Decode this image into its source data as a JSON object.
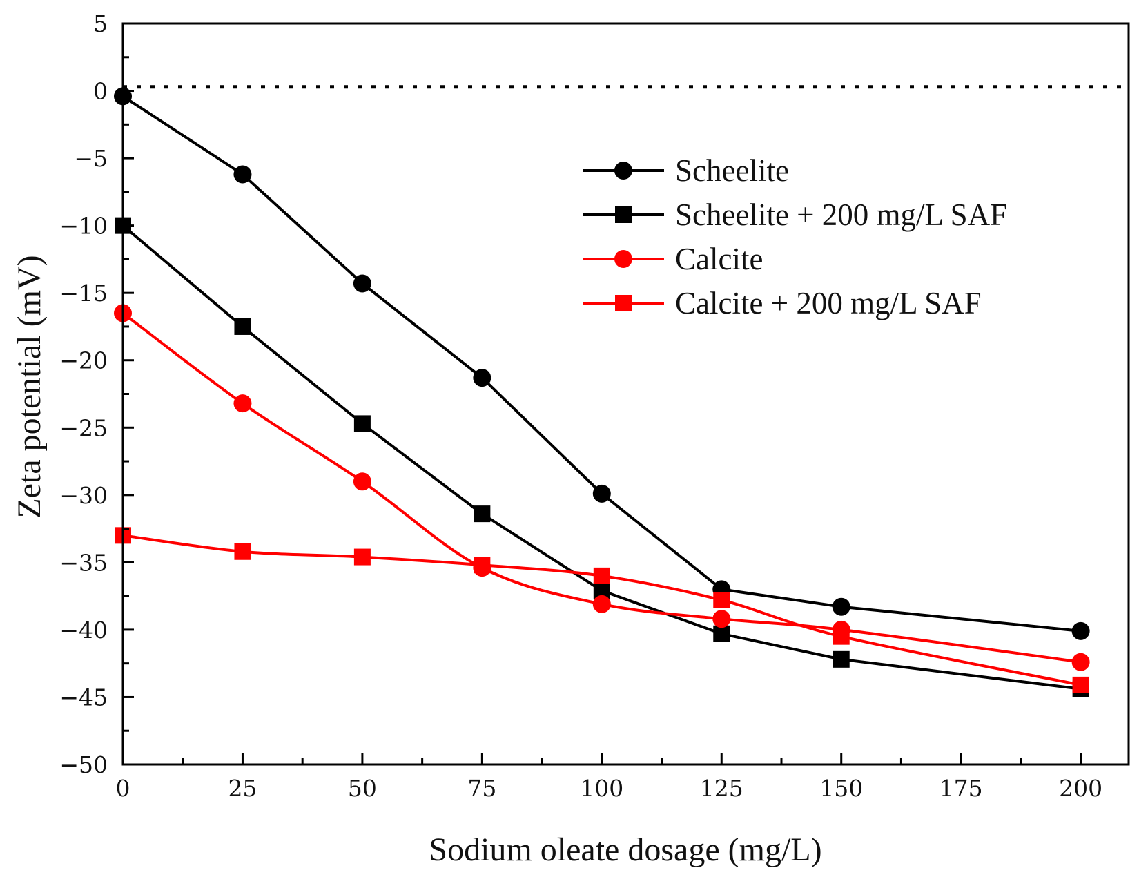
{
  "chart_data": {
    "type": "line",
    "title": "",
    "xlabel": "Sodium oleate dosage (mg/L)",
    "ylabel": "Zeta potential (mV)",
    "xlim": [
      0,
      210
    ],
    "ylim": [
      -50,
      5
    ],
    "xticks": [
      0,
      25,
      50,
      75,
      100,
      125,
      150,
      175,
      200
    ],
    "xtick_labels": [
      "0",
      "25",
      "50",
      "75",
      "100",
      "125",
      "150",
      "175",
      "200"
    ],
    "yticks": [
      5,
      0,
      -5,
      -10,
      -15,
      -20,
      -25,
      -30,
      -35,
      -40,
      -45,
      -50
    ],
    "ytick_labels": [
      "5",
      "0",
      "−5",
      "−10",
      "−15",
      "−20",
      "−25",
      "−30",
      "−35",
      "−40",
      "−45",
      "−50"
    ],
    "reference_line": {
      "y": 0.3,
      "style": "dotted"
    },
    "legend_position": "upper-right",
    "x": [
      0,
      25,
      50,
      75,
      100,
      125,
      150,
      200
    ],
    "series": [
      {
        "name": "Scheelite",
        "color": "#000000",
        "marker": "circle",
        "smooth": false,
        "values": [
          -0.4,
          -6.2,
          -14.3,
          -21.3,
          -29.9,
          -37.0,
          -38.3,
          -40.1
        ]
      },
      {
        "name": "Scheelite + 200 mg/L SAF",
        "color": "#000000",
        "marker": "square",
        "smooth": false,
        "values": [
          -10.0,
          -17.5,
          -24.7,
          -31.4,
          -37.1,
          -40.3,
          -42.2,
          -44.4
        ]
      },
      {
        "name": "Calcite",
        "color": "#ff0000",
        "marker": "circle",
        "smooth": true,
        "values": [
          -16.5,
          -23.2,
          -29.0,
          -35.4,
          -38.1,
          -39.2,
          -40.0,
          -42.4
        ]
      },
      {
        "name": "Calcite + 200 mg/L SAF",
        "color": "#ff0000",
        "marker": "square",
        "smooth": true,
        "values": [
          -33.0,
          -34.2,
          -34.6,
          -35.2,
          -36.0,
          -37.8,
          -40.5,
          -44.1
        ]
      }
    ]
  }
}
